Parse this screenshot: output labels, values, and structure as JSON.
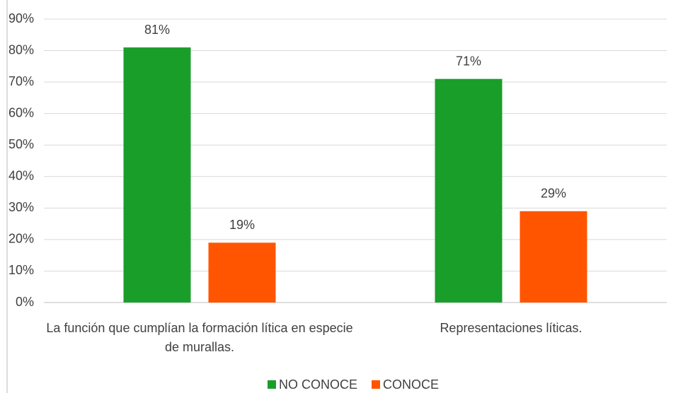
{
  "chart_data": {
    "type": "bar",
    "categories": [
      "La función que cumplían la formación lítica en especie de murallas.",
      "Representaciones líticas."
    ],
    "series": [
      {
        "name": "NO CONOCE",
        "color": "#1a9e2a",
        "values": [
          81,
          71
        ],
        "value_labels": [
          "81%",
          "71%"
        ]
      },
      {
        "name": "CONOCE",
        "color": "#ff5500",
        "values": [
          19,
          29
        ],
        "value_labels": [
          "19%",
          "29%"
        ]
      }
    ],
    "ylim": [
      0,
      90
    ],
    "yticks": [
      {
        "value": 0,
        "label": "0%"
      },
      {
        "value": 10,
        "label": "10%"
      },
      {
        "value": 20,
        "label": "20%"
      },
      {
        "value": 30,
        "label": "30%"
      },
      {
        "value": 40,
        "label": "40%"
      },
      {
        "value": 50,
        "label": "50%"
      },
      {
        "value": 60,
        "label": "60%"
      },
      {
        "value": 70,
        "label": "70%"
      },
      {
        "value": 80,
        "label": "80%"
      },
      {
        "value": 90,
        "label": "90%"
      }
    ],
    "grid": true,
    "legend": "bottom"
  }
}
